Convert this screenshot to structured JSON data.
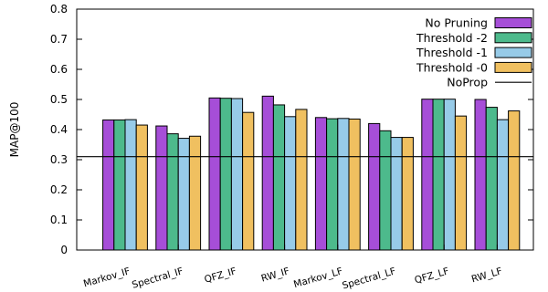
{
  "chart_data": {
    "type": "bar",
    "title": "",
    "xlabel": "",
    "ylabel": "MAP@100",
    "ylim": [
      0,
      0.8
    ],
    "yticks": [
      "0",
      "0.1",
      "0.2",
      "0.3",
      "0.4",
      "0.5",
      "0.6",
      "0.7",
      "0.8"
    ],
    "categories": [
      "Markov_IF",
      "Spectral_IF",
      "QFZ_IF",
      "RW_IF",
      "Markov_LF",
      "Spectral_LF",
      "QFZ_LF",
      "RW_LF"
    ],
    "series": [
      {
        "name": "No Pruning",
        "color": "#a64ed8",
        "values": [
          0.432,
          0.412,
          0.505,
          0.511,
          0.44,
          0.42,
          0.501,
          0.5
        ]
      },
      {
        "name": "Threshold -2",
        "color": "#4dba8c",
        "values": [
          0.432,
          0.386,
          0.504,
          0.482,
          0.436,
          0.396,
          0.501,
          0.474
        ]
      },
      {
        "name": "Threshold -1",
        "color": "#97cbe8",
        "values": [
          0.433,
          0.371,
          0.503,
          0.443,
          0.437,
          0.374,
          0.501,
          0.433
        ]
      },
      {
        "name": "Threshold -0",
        "color": "#f0c060",
        "values": [
          0.415,
          0.378,
          0.457,
          0.467,
          0.435,
          0.374,
          0.445,
          0.462
        ]
      }
    ],
    "reference_line": {
      "name": "NoProp",
      "value": 0.31,
      "color": "#000000"
    },
    "legend_position": "top-right",
    "grid": false
  }
}
